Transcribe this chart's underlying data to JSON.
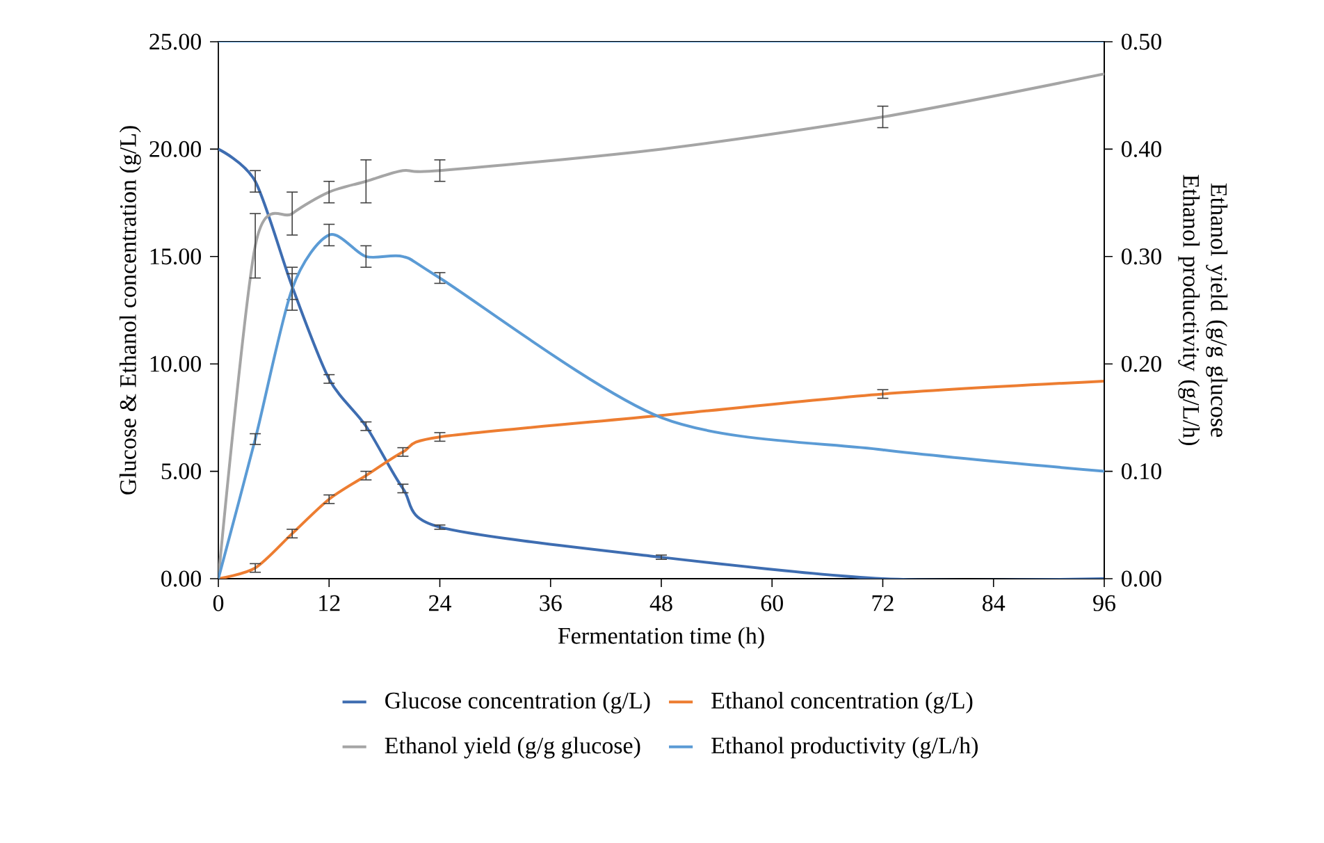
{
  "chart_data": {
    "type": "line",
    "x": [
      0,
      4,
      8,
      12,
      16,
      20,
      24,
      48,
      72,
      96
    ],
    "xlabel": "Fermentation time (h)",
    "ylabel": "Glucose & Ethanol concentration (g/L)",
    "y2label": "Ethanol yield (g/g glucose Ethanol productivity (g/L/h)",
    "xlim": [
      0,
      96
    ],
    "xticks": [
      0,
      12,
      24,
      36,
      48,
      60,
      72,
      84,
      96
    ],
    "ylim": [
      0,
      25
    ],
    "yticks": [
      {
        "value": 0,
        "label": "0.00"
      },
      {
        "value": 5,
        "label": "5.00"
      },
      {
        "value": 10,
        "label": "10.00"
      },
      {
        "value": 15,
        "label": "15.00"
      },
      {
        "value": 20,
        "label": "20.00"
      },
      {
        "value": 25,
        "label": "25.00"
      }
    ],
    "y2lim": [
      0,
      0.5
    ],
    "y2ticks": [
      {
        "value": 0,
        "label": "0.00"
      },
      {
        "value": 0.1,
        "label": "0.10"
      },
      {
        "value": 0.2,
        "label": "0.20"
      },
      {
        "value": 0.3,
        "label": "0.30"
      },
      {
        "value": 0.4,
        "label": "0.40"
      },
      {
        "value": 0.5,
        "label": "0.50"
      }
    ],
    "legend": "bottom",
    "line_style": "solid",
    "series": [
      {
        "name": "Glucose concentration (g/L)",
        "color": "#3e6db1",
        "values": [
          20.0,
          18.5,
          13.6,
          9.3,
          7.1,
          4.2,
          2.4,
          1.0,
          0,
          0
        ],
        "errors": [
          null,
          0.5,
          0.6,
          0.2,
          0.2,
          0.2,
          0.1,
          0.1,
          null,
          null
        ]
      },
      {
        "name": "Ethanol concentration (g/L)",
        "color": "#ed7d31",
        "values": [
          0,
          0.5,
          2.1,
          3.7,
          4.8,
          5.9,
          6.6,
          7.6,
          8.6,
          9.2
        ],
        "errors": [
          null,
          0.2,
          0.2,
          0.2,
          0.2,
          0.2,
          0.2,
          null,
          0.2,
          null
        ]
      },
      {
        "name": "Ethanol yield (g/g glucose)",
        "color": "#a5a5a5",
        "axis": "y2",
        "values": [
          0,
          0.31,
          0.34,
          0.36,
          0.37,
          0.38,
          0.38,
          0.4,
          0.43,
          0.47
        ],
        "errors": [
          null,
          0.03,
          0.02,
          0.01,
          0.02,
          null,
          0.01,
          null,
          0.01,
          null
        ]
      },
      {
        "name": "Ethanol productivity (g/L/h)",
        "color": "#5b9bd5",
        "axis": "y2",
        "values": [
          0,
          0.13,
          0.27,
          0.32,
          0.3,
          0.3,
          0.28,
          0.15,
          0.12,
          0.1
        ],
        "errors": [
          null,
          0.005,
          0.02,
          0.01,
          0.01,
          null,
          0.005,
          null,
          null,
          null
        ]
      }
    ]
  }
}
